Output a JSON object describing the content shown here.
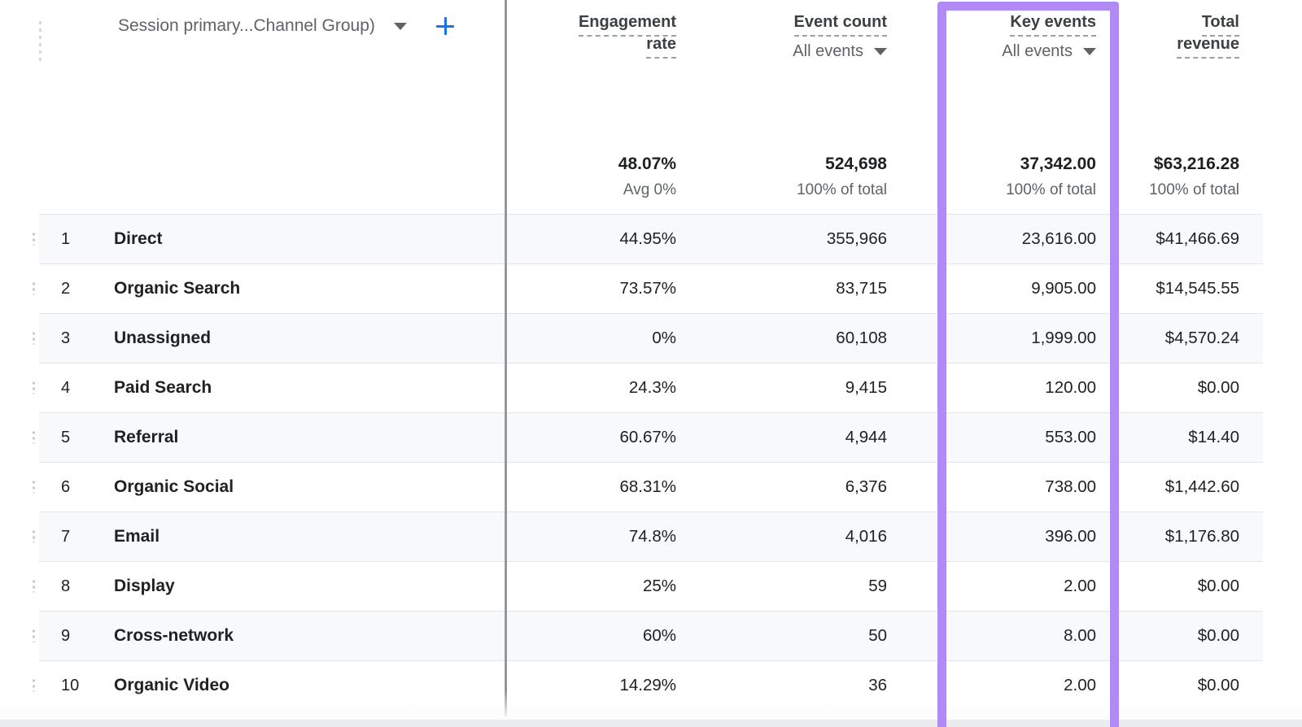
{
  "colors": {
    "highlight_purple": "#b28af8",
    "add_button_blue": "#1a73e8",
    "row_stripe": "#f8f9fa"
  },
  "header": {
    "dimension": {
      "label": "Session primary...Channel Group)"
    },
    "add_button": "plus-icon"
  },
  "columns": [
    {
      "id": "engagement_rate",
      "title_lines": [
        "Engagement",
        "rate"
      ],
      "selector": null,
      "total": {
        "value": "48.07%",
        "caption": "Avg 0%"
      }
    },
    {
      "id": "event_count",
      "title_lines": [
        "Event count"
      ],
      "selector": "All events",
      "total": {
        "value": "524,698",
        "caption": "100% of total"
      }
    },
    {
      "id": "key_events",
      "title_lines": [
        "Key events"
      ],
      "selector": "All events",
      "highlighted": true,
      "total": {
        "value": "37,342.00",
        "caption": "100% of total"
      }
    },
    {
      "id": "total_revenue",
      "title_lines": [
        "Total",
        "revenue"
      ],
      "selector": null,
      "total": {
        "value": "$63,216.28",
        "caption": "100% of total"
      }
    }
  ],
  "rows": [
    {
      "index": "1",
      "channel": "Direct",
      "engagement_rate": "44.95%",
      "event_count": "355,966",
      "key_events": "23,616.00",
      "total_revenue": "$41,466.69"
    },
    {
      "index": "2",
      "channel": "Organic Search",
      "engagement_rate": "73.57%",
      "event_count": "83,715",
      "key_events": "9,905.00",
      "total_revenue": "$14,545.55"
    },
    {
      "index": "3",
      "channel": "Unassigned",
      "engagement_rate": "0%",
      "event_count": "60,108",
      "key_events": "1,999.00",
      "total_revenue": "$4,570.24"
    },
    {
      "index": "4",
      "channel": "Paid Search",
      "engagement_rate": "24.3%",
      "event_count": "9,415",
      "key_events": "120.00",
      "total_revenue": "$0.00"
    },
    {
      "index": "5",
      "channel": "Referral",
      "engagement_rate": "60.67%",
      "event_count": "4,944",
      "key_events": "553.00",
      "total_revenue": "$14.40"
    },
    {
      "index": "6",
      "channel": "Organic Social",
      "engagement_rate": "68.31%",
      "event_count": "6,376",
      "key_events": "738.00",
      "total_revenue": "$1,442.60"
    },
    {
      "index": "7",
      "channel": "Email",
      "engagement_rate": "74.8%",
      "event_count": "4,016",
      "key_events": "396.00",
      "total_revenue": "$1,176.80"
    },
    {
      "index": "8",
      "channel": "Display",
      "engagement_rate": "25%",
      "event_count": "59",
      "key_events": "2.00",
      "total_revenue": "$0.00"
    },
    {
      "index": "9",
      "channel": "Cross-network",
      "engagement_rate": "60%",
      "event_count": "50",
      "key_events": "8.00",
      "total_revenue": "$0.00"
    },
    {
      "index": "10",
      "channel": "Organic Video",
      "engagement_rate": "14.29%",
      "event_count": "36",
      "key_events": "2.00",
      "total_revenue": "$0.00"
    }
  ]
}
